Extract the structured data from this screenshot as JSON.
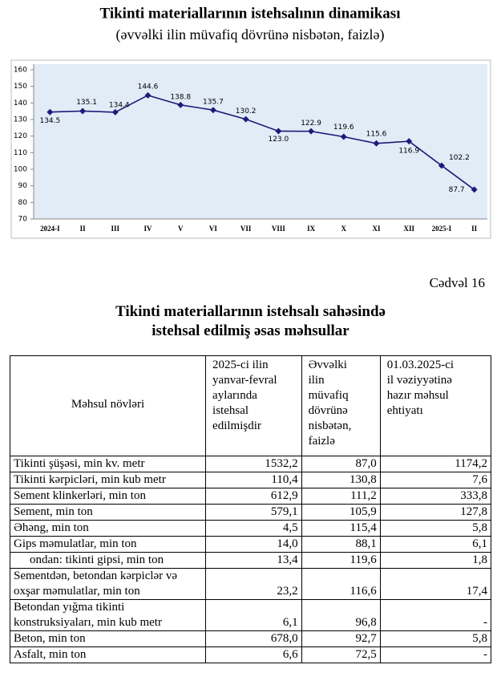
{
  "chart_data": {
    "type": "line",
    "title": "Tikinti materiallarının istehsalının dinamikası",
    "subtitle": "(əvvəlki ilin müvafiq dövrünə nisbətən, faizlə)",
    "categories": [
      "2024-I",
      "II",
      "III",
      "IV",
      "V",
      "VI",
      "VII",
      "VIII",
      "IX",
      "X",
      "XI",
      "XII",
      "2025-I",
      "II"
    ],
    "values": [
      134.5,
      135.1,
      134.4,
      144.6,
      138.8,
      135.7,
      130.2,
      123.0,
      122.9,
      119.6,
      115.6,
      116.9,
      102.2,
      87.7
    ],
    "value_labels": [
      "134.5",
      "135.1",
      "134.4",
      "144.6",
      "138.8",
      "135.7",
      "130.2",
      "123.0",
      "122.9",
      "119.6",
      "115.6",
      "116.9",
      "102.2",
      "87.7"
    ],
    "color": "#1c1c78",
    "ylim": [
      70,
      160
    ],
    "yticks": [
      70,
      80,
      90,
      100,
      110,
      120,
      130,
      140,
      150,
      160
    ]
  },
  "table_number": "Cədvəl 16",
  "table": {
    "title": [
      "Tikinti materiallarının istehsalı sahəsində",
      "istehsal edilmiş əsas məhsullar"
    ],
    "header": [
      [
        "Məhsul növləri"
      ],
      [
        "2025-ci ilin",
        "yanvar-fevral",
        "aylarında",
        "istehsal",
        "edilmişdir"
      ],
      [
        "Əvvəlki",
        "ilin",
        "müvafiq",
        "dövrünə",
        "nisbətən,",
        "faizlə"
      ],
      [
        "01.03.2025-ci",
        "il vəziyyətinə",
        "hazır məhsul",
        "ehtiyatı"
      ]
    ],
    "rows": [
      [
        "Tikinti şüşəsi, min kv. metr",
        "1532,2",
        "87,0",
        "1174,2"
      ],
      [
        "Tikinti kərpicləri, min kub metr",
        "110,4",
        "130,8",
        "7,6"
      ],
      [
        "Sement klinkerləri, min ton",
        "612,9",
        "111,2",
        "333,8"
      ],
      [
        "Sement, min ton",
        "579,1",
        "105,9",
        "127,8"
      ],
      [
        "Əhəng, min ton",
        "4,5",
        "115,4",
        "5,8"
      ],
      [
        "Gips məmulatlar, min ton",
        "14,0",
        "88,1",
        "6,1"
      ],
      [
        "ondan: tikinti gipsi, min ton",
        "13,4",
        "119,6",
        "1,8"
      ],
      [
        "Sementdən, betondan kərpiclər və oxşar məmulatlar, min ton",
        "23,2",
        "116,6",
        "17,4"
      ],
      [
        "Betondan yığma tikinti konstruksiyaları, min kub metr",
        "6,1",
        "96,8",
        "-"
      ],
      [
        "Beton, min ton",
        "678,0",
        "92,7",
        "5,8"
      ],
      [
        "Asfalt, min ton",
        "6,6",
        "72,5",
        "-"
      ]
    ]
  }
}
